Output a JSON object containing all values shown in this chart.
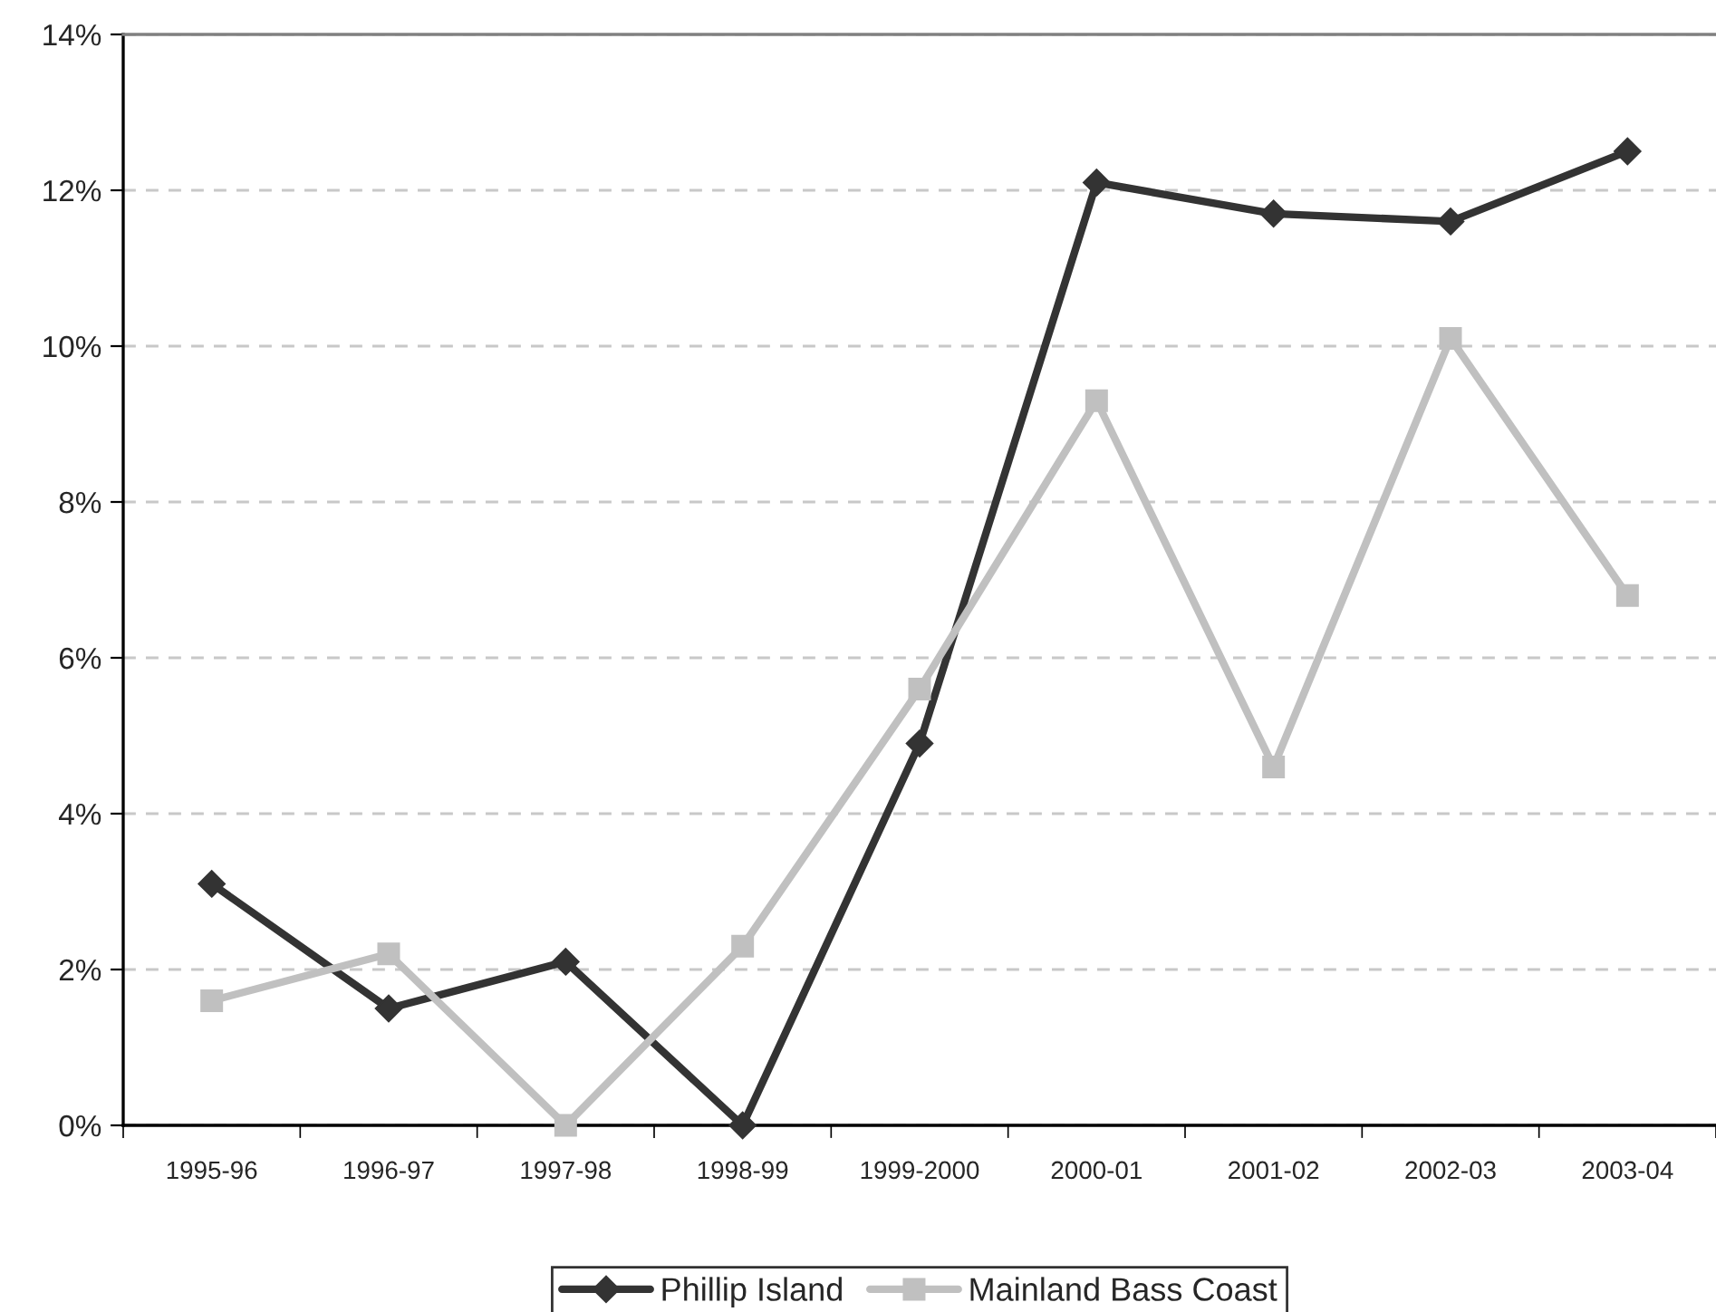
{
  "chart_data": {
    "type": "line",
    "categories": [
      "1995-96",
      "1996-97",
      "1997-98",
      "1998-99",
      "1999-2000",
      "2000-01",
      "2001-02",
      "2002-03",
      "2003-04"
    ],
    "series": [
      {
        "name": "Phillip Island",
        "color": "#333333",
        "marker": "diamond",
        "values": [
          3.1,
          1.5,
          2.1,
          0,
          4.9,
          12.1,
          11.7,
          11.6,
          12.5
        ]
      },
      {
        "name": "Mainland Bass Coast",
        "color": "#c0c0c0",
        "marker": "square",
        "values": [
          1.6,
          2.2,
          0,
          2.3,
          5.6,
          9.3,
          4.6,
          10.1,
          6.8
        ]
      }
    ],
    "ylim": [
      0,
      14
    ],
    "yticks": [
      {
        "value": 0,
        "label": "0%"
      },
      {
        "value": 2,
        "label": "2%"
      },
      {
        "value": 4,
        "label": "4%"
      },
      {
        "value": 6,
        "label": "6%"
      },
      {
        "value": 8,
        "label": "8%"
      },
      {
        "value": 10,
        "label": "10%"
      },
      {
        "value": 12,
        "label": "12%"
      },
      {
        "value": 14,
        "label": "14%"
      }
    ],
    "grid": "y",
    "line_style": "solid",
    "legend": "bottom"
  }
}
